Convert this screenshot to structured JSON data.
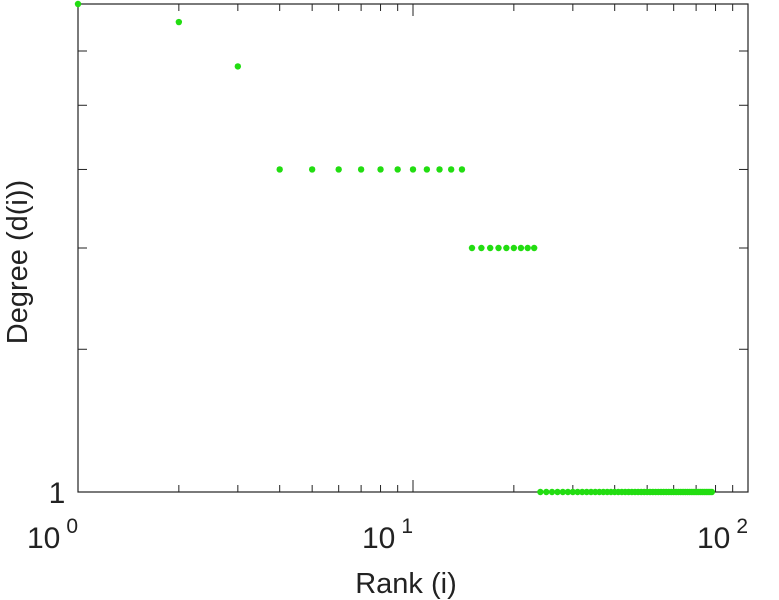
{
  "chart_data": {
    "type": "scatter",
    "title": "",
    "xlabel": "Rank (i)",
    "ylabel": "Degree (d(i))",
    "xscale": "log",
    "yscale": "log",
    "xlim": [
      1,
      100
    ],
    "ylim": [
      1,
      4
    ],
    "x_tick_labels": [
      {
        "base": "10",
        "exp": "0",
        "value": 1
      },
      {
        "base": "10",
        "exp": "1",
        "value": 10
      },
      {
        "base": "10",
        "exp": "2",
        "value": 100
      }
    ],
    "y_tick_labels": [
      {
        "text": "1",
        "value": 1
      }
    ],
    "y_unlabeled_ticks": [
      1.5,
      2,
      2.5,
      3,
      3.5
    ],
    "grid": false,
    "marker_color": "#22dd11",
    "points": [
      {
        "x": 1,
        "y": 4
      },
      {
        "x": 2,
        "y": 3.8
      },
      {
        "x": 3,
        "y": 3.35
      },
      {
        "x": 4,
        "y": 2.5
      },
      {
        "x": 5,
        "y": 2.5
      },
      {
        "x": 6,
        "y": 2.5
      },
      {
        "x": 7,
        "y": 2.5
      },
      {
        "x": 8,
        "y": 2.5
      },
      {
        "x": 9,
        "y": 2.5
      },
      {
        "x": 10,
        "y": 2.5
      },
      {
        "x": 11,
        "y": 2.5
      },
      {
        "x": 12,
        "y": 2.5
      },
      {
        "x": 13,
        "y": 2.5
      },
      {
        "x": 14,
        "y": 2.5
      },
      {
        "x": 15,
        "y": 2
      },
      {
        "x": 16,
        "y": 2
      },
      {
        "x": 17,
        "y": 2
      },
      {
        "x": 18,
        "y": 2
      },
      {
        "x": 19,
        "y": 2
      },
      {
        "x": 20,
        "y": 2
      },
      {
        "x": 21,
        "y": 2
      },
      {
        "x": 22,
        "y": 2
      },
      {
        "x": 23,
        "y": 2
      },
      {
        "x": 24,
        "y": 1
      },
      {
        "x": 25,
        "y": 1
      },
      {
        "x": 26,
        "y": 1
      },
      {
        "x": 27,
        "y": 1
      },
      {
        "x": 28,
        "y": 1
      },
      {
        "x": 29,
        "y": 1
      },
      {
        "x": 30,
        "y": 1
      },
      {
        "x": 31,
        "y": 1
      },
      {
        "x": 32,
        "y": 1
      },
      {
        "x": 33,
        "y": 1
      },
      {
        "x": 34,
        "y": 1
      },
      {
        "x": 35,
        "y": 1
      },
      {
        "x": 36,
        "y": 1
      },
      {
        "x": 37,
        "y": 1
      },
      {
        "x": 38,
        "y": 1
      },
      {
        "x": 39,
        "y": 1
      },
      {
        "x": 40,
        "y": 1
      },
      {
        "x": 41,
        "y": 1
      },
      {
        "x": 42,
        "y": 1
      },
      {
        "x": 43,
        "y": 1
      },
      {
        "x": 44,
        "y": 1
      },
      {
        "x": 45,
        "y": 1
      },
      {
        "x": 46,
        "y": 1
      },
      {
        "x": 47,
        "y": 1
      },
      {
        "x": 48,
        "y": 1
      },
      {
        "x": 49,
        "y": 1
      },
      {
        "x": 50,
        "y": 1
      },
      {
        "x": 51,
        "y": 1
      },
      {
        "x": 52,
        "y": 1
      },
      {
        "x": 53,
        "y": 1
      },
      {
        "x": 54,
        "y": 1
      },
      {
        "x": 55,
        "y": 1
      },
      {
        "x": 56,
        "y": 1
      },
      {
        "x": 57,
        "y": 1
      },
      {
        "x": 58,
        "y": 1
      },
      {
        "x": 59,
        "y": 1
      },
      {
        "x": 60,
        "y": 1
      },
      {
        "x": 61,
        "y": 1
      },
      {
        "x": 62,
        "y": 1
      },
      {
        "x": 63,
        "y": 1
      },
      {
        "x": 64,
        "y": 1
      },
      {
        "x": 65,
        "y": 1
      },
      {
        "x": 66,
        "y": 1
      },
      {
        "x": 67,
        "y": 1
      },
      {
        "x": 68,
        "y": 1
      },
      {
        "x": 69,
        "y": 1
      },
      {
        "x": 70,
        "y": 1
      },
      {
        "x": 71,
        "y": 1
      },
      {
        "x": 72,
        "y": 1
      },
      {
        "x": 73,
        "y": 1
      },
      {
        "x": 74,
        "y": 1
      },
      {
        "x": 75,
        "y": 1
      },
      {
        "x": 76,
        "y": 1
      },
      {
        "x": 77,
        "y": 1
      },
      {
        "x": 78,
        "y": 1
      }
    ]
  }
}
